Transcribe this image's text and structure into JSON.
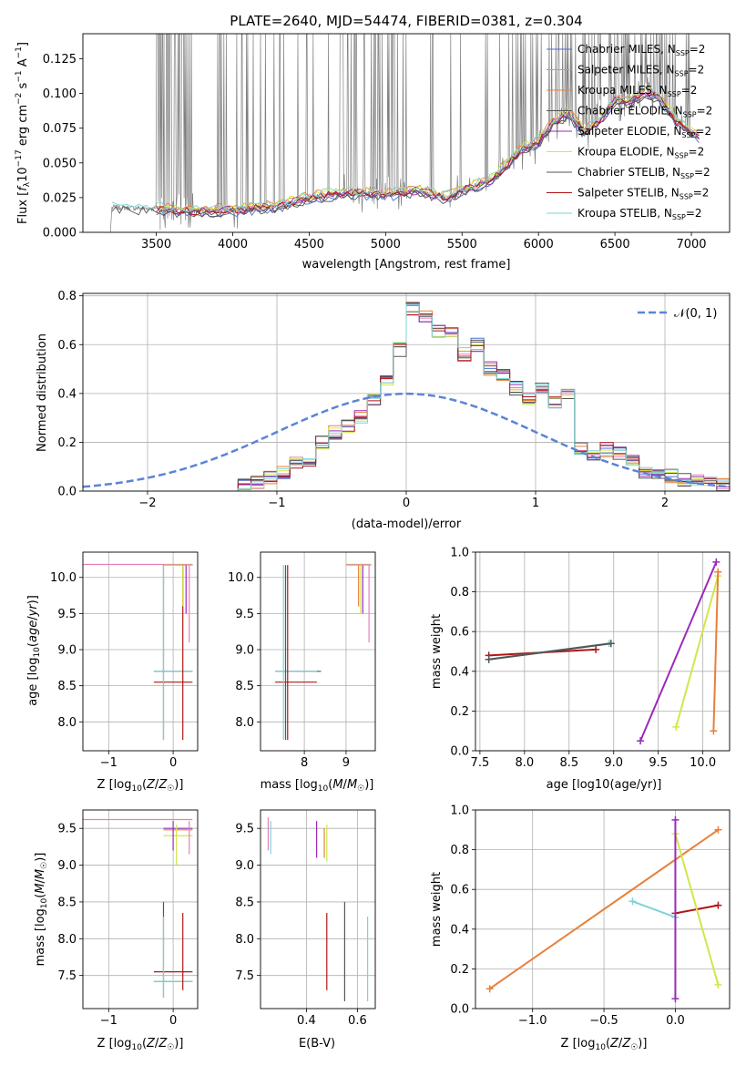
{
  "figure": {
    "title": "PLATE=2640, MJD=54474, FIBERID=0381, z=0.304",
    "series_colors": [
      "#4c6fd0",
      "#e87fb4",
      "#e8803a",
      "#555555",
      "#9b2ab8",
      "#d2e64a",
      "#555555",
      "#b01616",
      "#7dd3d6"
    ],
    "series_names": [
      "Chabrier MILES, N_SSP=2",
      "Salpeter MILES, N_SSP=2",
      "Kroupa MILES, N_SSP=2",
      "Chabrier ELODIE, N_SSP=2",
      "Salpeter ELODIE, N_SSP=2",
      "Kroupa ELODIE, N_SSP=2",
      "Chabrier STELIB, N_SSP=2",
      "Salpeter STELIB, N_SSP=2",
      "Kroupa STELIB, N_SSP=2"
    ],
    "data_color": "#808080"
  },
  "chart_data": [
    {
      "id": "spectrum",
      "type": "line",
      "xlabel": "wavelength [Angstrom, rest frame]",
      "ylabel": "Flux [f_λ 10^-17 erg cm^-2 s^-1 A^-1]",
      "xlim": [
        3020,
        7250
      ],
      "ylim": [
        0,
        0.143
      ],
      "xticks": [
        3500,
        4000,
        4500,
        5000,
        5500,
        6000,
        6500,
        7000
      ],
      "yticks": [
        0.0,
        0.025,
        0.05,
        0.075,
        0.1,
        0.125
      ],
      "grid": false,
      "legend": "top-right",
      "continuum_x": [
        3200,
        3500,
        3700,
        3900,
        4000,
        4300,
        4500,
        4700,
        4900,
        5000,
        5200,
        5400,
        5500,
        5700,
        5800,
        5900,
        6000,
        6100,
        6200,
        6300,
        6400,
        6500,
        6600,
        6700,
        6800,
        6900,
        7000,
        7050
      ],
      "continuum_y": [
        0.018,
        0.017,
        0.015,
        0.016,
        0.016,
        0.019,
        0.025,
        0.028,
        0.028,
        0.027,
        0.03,
        0.025,
        0.03,
        0.038,
        0.05,
        0.06,
        0.065,
        0.08,
        0.085,
        0.072,
        0.08,
        0.095,
        0.094,
        0.102,
        0.095,
        0.08,
        0.072,
        0.068
      ]
    },
    {
      "id": "residuals",
      "type": "line",
      "xlabel": "(data-model)/error",
      "ylabel": "Normed distribution",
      "xlim": [
        -2.5,
        2.5
      ],
      "ylim": [
        0,
        0.81
      ],
      "xticks": [
        -2,
        -1,
        0,
        1,
        2
      ],
      "yticks": [
        0.0,
        0.2,
        0.4,
        0.6,
        0.8
      ],
      "grid": true,
      "legend": "top-right",
      "legend_label": "𝒩(0, 1)",
      "hist_edges": [
        -1.3,
        -1.2,
        -1.1,
        -1.0,
        -0.9,
        -0.8,
        -0.7,
        -0.6,
        -0.5,
        -0.4,
        -0.3,
        -0.2,
        -0.1,
        0.0,
        0.1,
        0.2,
        0.3,
        0.4,
        0.5,
        0.6,
        0.7,
        0.8,
        0.9,
        1.0,
        1.1,
        1.2,
        1.3,
        1.4,
        1.5,
        1.6,
        1.7,
        1.8,
        1.9,
        2.0,
        2.1,
        2.2,
        2.3,
        2.4,
        2.5
      ],
      "hist_values": [
        0.02,
        0.04,
        0.06,
        0.08,
        0.11,
        0.13,
        0.2,
        0.24,
        0.27,
        0.3,
        0.38,
        0.45,
        0.58,
        0.75,
        0.71,
        0.66,
        0.64,
        0.56,
        0.6,
        0.5,
        0.47,
        0.42,
        0.38,
        0.42,
        0.37,
        0.4,
        0.18,
        0.15,
        0.17,
        0.16,
        0.12,
        0.08,
        0.06,
        0.06,
        0.05,
        0.04,
        0.03,
        0.03
      ]
    },
    {
      "id": "Z-age",
      "type": "scatter",
      "xlabel": "Z [log10(Z/Z☉)]",
      "ylabel": "age [log10(age/yr)]",
      "xlim": [
        -1.4,
        0.38
      ],
      "ylim": [
        7.6,
        10.35
      ],
      "xticks": [
        -1,
        0
      ],
      "yticks": [
        8.0,
        8.5,
        9.0,
        9.5,
        10.0
      ],
      "grid": true
    },
    {
      "id": "mass-age",
      "type": "scatter",
      "xlabel": "mass [log10(M/M☉)]",
      "ylabel": "",
      "xlim": [
        6.95,
        9.7
      ],
      "ylim": [
        7.6,
        10.35
      ],
      "xticks": [
        8,
        9
      ],
      "yticks": [
        8.0,
        8.5,
        9.0,
        9.5,
        10.0
      ],
      "grid": true
    },
    {
      "id": "age-weight",
      "type": "line",
      "xlabel": "age [log10(age/yr)]",
      "ylabel": "mass weight",
      "xlim": [
        7.45,
        10.3
      ],
      "ylim": [
        0,
        1
      ],
      "xticks": [
        7.5,
        8.0,
        8.5,
        9.0,
        9.5,
        10.0
      ],
      "yticks": [
        0.0,
        0.2,
        0.4,
        0.6,
        0.8,
        1.0
      ],
      "grid": true,
      "series": [
        {
          "x": [
            7.6,
            8.8
          ],
          "y": [
            0.48,
            0.51
          ],
          "color_index": 7
        },
        {
          "x": [
            7.6,
            8.95
          ],
          "y": [
            0.46,
            0.54
          ],
          "color_index": 8
        },
        {
          "x": [
            7.6,
            8.97
          ],
          "y": [
            0.46,
            0.54
          ],
          "color_index": 6
        },
        {
          "x": [
            9.3,
            10.15
          ],
          "y": [
            0.05,
            0.95
          ],
          "color_index": 4
        },
        {
          "x": [
            9.7,
            10.17
          ],
          "y": [
            0.12,
            0.88
          ],
          "color_index": 5
        },
        {
          "x": [
            10.12,
            10.17
          ],
          "y": [
            0.1,
            0.9
          ],
          "color_index": 2
        }
      ]
    },
    {
      "id": "Z-mass",
      "type": "scatter",
      "xlabel": "Z [log10(Z/Z☉)]",
      "ylabel": "mass [log10(M/M☉)]",
      "xlim": [
        -1.4,
        0.38
      ],
      "ylim": [
        7.05,
        9.75
      ],
      "xticks": [
        -1,
        0
      ],
      "yticks": [
        7.5,
        8.0,
        8.5,
        9.0,
        9.5
      ],
      "grid": true
    },
    {
      "id": "EBV-mass",
      "type": "scatter",
      "xlabel": "E(B-V)",
      "ylabel": "",
      "xlim": [
        0.22,
        0.67
      ],
      "ylim": [
        7.05,
        9.75
      ],
      "xticks": [
        0.4,
        0.6
      ],
      "yticks": [
        7.5,
        8.0,
        8.5,
        9.0,
        9.5
      ],
      "grid": true
    },
    {
      "id": "Z-weight",
      "type": "line",
      "xlabel": "Z [log10(Z/Z☉)]",
      "ylabel": "mass weight",
      "xlim": [
        -1.4,
        0.38
      ],
      "ylim": [
        0,
        1
      ],
      "xticks": [
        -1.0,
        -0.5,
        0.0
      ],
      "yticks": [
        0.0,
        0.2,
        0.4,
        0.6,
        0.8,
        1.0
      ],
      "grid": true,
      "series": [
        {
          "x": [
            -1.3,
            0.3
          ],
          "y": [
            0.1,
            0.9
          ],
          "color_index": 2
        },
        {
          "x": [
            0.0,
            0.3
          ],
          "y": [
            0.48,
            0.52
          ],
          "color_index": 7
        },
        {
          "x": [
            -0.3,
            0.0
          ],
          "y": [
            0.54,
            0.46
          ],
          "color_index": 8
        },
        {
          "x": [
            0.0,
            0.3
          ],
          "y": [
            0.88,
            0.12
          ],
          "color_index": 5
        },
        {
          "x": [
            0.0,
            0.0
          ],
          "y": [
            0.05,
            0.95
          ],
          "color_index": 4
        }
      ]
    }
  ]
}
